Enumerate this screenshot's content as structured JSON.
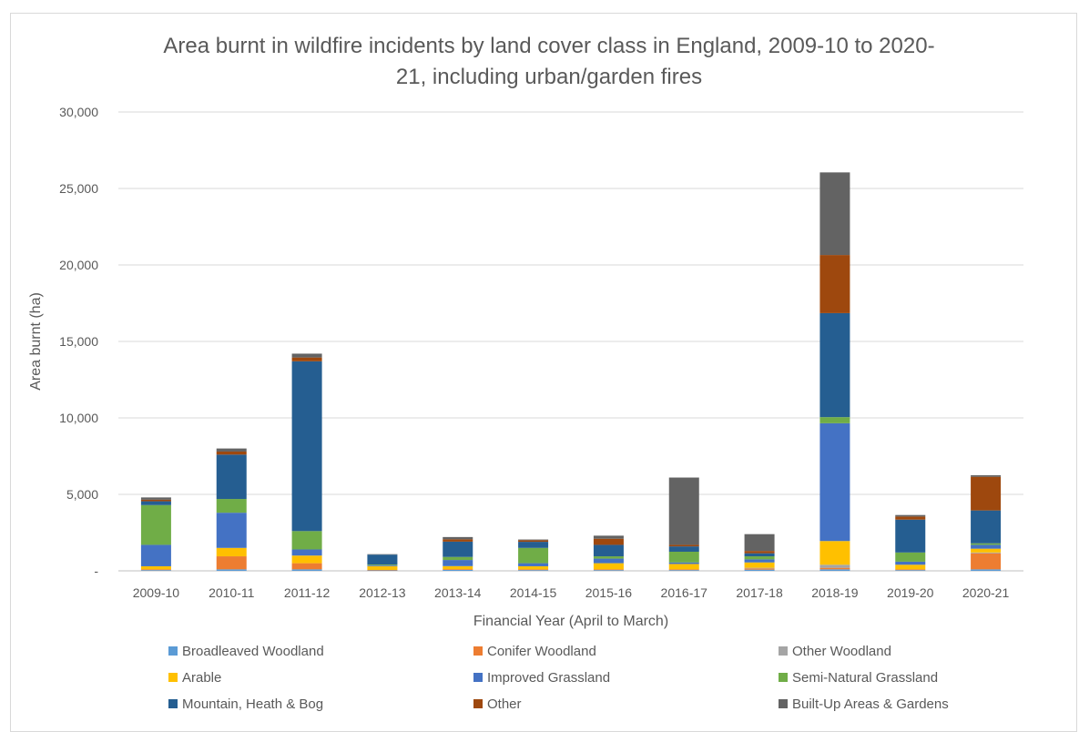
{
  "chart_data": {
    "type": "bar",
    "stacked": true,
    "title_lines": [
      "Area burnt in wildfire incidents by land cover class in England, 2009-10 to 2020-",
      "21, including urban/garden fires"
    ],
    "xlabel": "Financial Year (April to March)",
    "ylabel": "Area burnt (ha)",
    "ylim": [
      0,
      30000
    ],
    "yticks": [
      0,
      5000,
      10000,
      15000,
      20000,
      25000,
      30000
    ],
    "ytick_labels": [
      "-",
      "5,000",
      "10,000",
      "15,000",
      "20,000",
      "25,000",
      "30,000"
    ],
    "grid": true,
    "legend_position": "bottom",
    "categories": [
      "2009-10",
      "2010-11",
      "2011-12",
      "2012-13",
      "2013-14",
      "2014-15",
      "2015-16",
      "2016-17",
      "2017-18",
      "2018-19",
      "2019-20",
      "2020-21"
    ],
    "series": [
      {
        "name": "Broadleaved Woodland",
        "color": "#5b9bd5",
        "values": [
          50,
          100,
          100,
          30,
          60,
          50,
          50,
          50,
          80,
          100,
          50,
          100
        ]
      },
      {
        "name": "Conifer Woodland",
        "color": "#ed7d31",
        "values": [
          50,
          850,
          400,
          30,
          50,
          50,
          50,
          50,
          80,
          100,
          50,
          1050
        ]
      },
      {
        "name": "Other Woodland",
        "color": "#a5a5a5",
        "values": [
          0,
          0,
          0,
          0,
          0,
          0,
          0,
          0,
          40,
          200,
          0,
          50
        ]
      },
      {
        "name": "Arable",
        "color": "#ffc000",
        "values": [
          200,
          550,
          500,
          250,
          200,
          200,
          400,
          350,
          350,
          1550,
          300,
          250
        ]
      },
      {
        "name": "Improved Grassland",
        "color": "#4472c4",
        "values": [
          1400,
          2300,
          400,
          50,
          400,
          200,
          300,
          100,
          200,
          7700,
          200,
          250
        ]
      },
      {
        "name": "Semi-Natural Grassland",
        "color": "#70ad47",
        "values": [
          2600,
          900,
          1200,
          50,
          200,
          1000,
          150,
          700,
          200,
          400,
          600,
          100
        ]
      },
      {
        "name": "Mountain, Heath & Bog",
        "color": "#255e91",
        "values": [
          250,
          2900,
          11100,
          650,
          1000,
          400,
          750,
          350,
          200,
          6800,
          2150,
          2150
        ]
      },
      {
        "name": "Other",
        "color": "#9e480e",
        "values": [
          100,
          200,
          250,
          0,
          150,
          100,
          400,
          100,
          150,
          3800,
          200,
          2200
        ]
      },
      {
        "name": "Built-Up Areas & Gardens",
        "color": "#636363",
        "values": [
          150,
          200,
          250,
          30,
          150,
          50,
          200,
          4400,
          1100,
          5400,
          100,
          100
        ]
      }
    ]
  }
}
